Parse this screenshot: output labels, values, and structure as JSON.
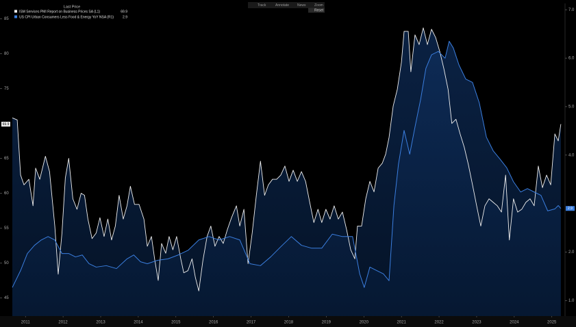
{
  "toolbar": [
    "Track",
    "Annotate",
    "News",
    "Zoom"
  ],
  "reset": "Reset",
  "chart_data": {
    "type": "area",
    "legend_header": "Last Price",
    "xlim": [
      2010.65,
      2025.26
    ],
    "xticks": [
      2011,
      2012,
      2013,
      2014,
      2015,
      2016,
      2017,
      2018,
      2019,
      2020,
      2021,
      2022,
      2023,
      2024,
      2025
    ],
    "ylim": [
      42.4,
      87.2
    ],
    "yticks": [
      45,
      50,
      55,
      60,
      65,
      75,
      80,
      85
    ],
    "y2lim": [
      0.68,
      7.13
    ],
    "y2ticks": [
      {
        "value": 1,
        "label": "1.0"
      },
      {
        "value": 2,
        "label": "2.0"
      },
      {
        "value": 4,
        "label": "4.0"
      },
      {
        "value": 5,
        "label": "5.0"
      },
      {
        "value": 6,
        "label": "6.0"
      },
      {
        "value": 7,
        "label": "7.0"
      }
    ],
    "grid": false,
    "series": [
      {
        "name": "ISM Services PMI Report on Business Prices SA  (L1)",
        "color": "#f0f0f0",
        "fill": "#0a2246",
        "x": [
          2010.65,
          2010.78,
          2010.87,
          2010.96,
          2011.09,
          2011.2,
          2011.27,
          2011.38,
          2011.53,
          2011.64,
          2011.78,
          2011.87,
          2011.97,
          2012.06,
          2012.15,
          2012.26,
          2012.37,
          2012.48,
          2012.57,
          2012.66,
          2012.77,
          2012.88,
          2012.98,
          2013.09,
          2013.19,
          2013.29,
          2013.39,
          2013.49,
          2013.6,
          2013.7,
          2013.79,
          2013.9,
          2014.02,
          2014.15,
          2014.24,
          2014.35,
          2014.44,
          2014.53,
          2014.62,
          2014.73,
          2014.82,
          2014.92,
          2015.02,
          2015.13,
          2015.21,
          2015.32,
          2015.43,
          2015.52,
          2015.61,
          2015.72,
          2015.83,
          2015.93,
          2016.04,
          2016.15,
          2016.26,
          2016.37,
          2016.48,
          2016.61,
          2016.7,
          2016.81,
          2016.92,
          2017.03,
          2017.14,
          2017.25,
          2017.36,
          2017.46,
          2017.57,
          2017.68,
          2017.79,
          2017.9,
          2018.01,
          2018.12,
          2018.23,
          2018.34,
          2018.45,
          2018.56,
          2018.67,
          2018.78,
          2018.88,
          2018.99,
          2019.1,
          2019.21,
          2019.32,
          2019.43,
          2019.54,
          2019.65,
          2019.76,
          2019.83,
          2019.94,
          2020.05,
          2020.16,
          2020.27,
          2020.38,
          2020.49,
          2020.58,
          2020.67,
          2020.78,
          2020.89,
          2021.0,
          2021.07,
          2021.18,
          2021.25,
          2021.36,
          2021.47,
          2021.58,
          2021.69,
          2021.8,
          2021.91,
          2022.02,
          2022.13,
          2022.24,
          2022.34,
          2022.45,
          2022.56,
          2022.67,
          2022.78,
          2022.89,
          2023.0,
          2023.11,
          2023.22,
          2023.33,
          2023.44,
          2023.55,
          2023.66,
          2023.77,
          2023.87,
          2023.98,
          2024.09,
          2024.2,
          2024.31,
          2024.42,
          2024.53,
          2024.64,
          2024.75,
          2024.86,
          2024.97,
          2025.08,
          2025.17,
          2025.24
        ],
        "values": [
          70.8,
          70.5,
          62.6,
          61.2,
          62,
          58.2,
          63.6,
          62,
          65.3,
          63.1,
          55.3,
          48.4,
          54.3,
          62.2,
          65,
          59.2,
          57.7,
          60,
          59.7,
          56.3,
          53.5,
          54.3,
          56.5,
          53.8,
          56.3,
          53.3,
          55.3,
          59.7,
          56.3,
          58.2,
          61,
          58.4,
          58.4,
          56.3,
          52.4,
          53.8,
          50.4,
          47.5,
          52.8,
          51.4,
          53.8,
          51.9,
          53.8,
          50.6,
          48.6,
          48.9,
          50.6,
          47.9,
          46,
          50.4,
          53.8,
          55.3,
          52.4,
          53.8,
          52.8,
          54.8,
          56.5,
          58.2,
          55.3,
          57.7,
          49.9,
          54.3,
          59.7,
          64.6,
          59.7,
          61.2,
          62,
          62,
          62.6,
          63.9,
          61.7,
          63.3,
          61.7,
          63.1,
          61.7,
          58.7,
          55.8,
          57.7,
          55.8,
          57.7,
          56.3,
          58.2,
          56.3,
          57.3,
          54.8,
          51.9,
          50.6,
          55.3,
          55.3,
          59.2,
          61.7,
          60.2,
          63.6,
          64.3,
          65.6,
          68,
          72.5,
          74.9,
          78.8,
          83.2,
          83.2,
          77.4,
          82.7,
          81.3,
          83.7,
          81.3,
          83.5,
          82.3,
          80.3,
          77.8,
          74.9,
          70,
          70.6,
          68.5,
          66.6,
          64.1,
          61.2,
          58.2,
          55.3,
          58.2,
          59.2,
          58.7,
          58.2,
          57.3,
          62.6,
          53.3,
          59.2,
          57.3,
          57.7,
          58.7,
          59.2,
          58.2,
          63.9,
          60.8,
          62.6,
          61.2,
          68.5,
          67.5,
          69.9
        ]
      },
      {
        "name": "US CPI Urban Consumers Less Food & Energy YoY NSA  (R1)",
        "color": "#3b7fe0",
        "fill": "#0a2246",
        "axis": "y2",
        "x": [
          2010.65,
          2010.87,
          2011.05,
          2011.24,
          2011.42,
          2011.6,
          2011.78,
          2011.97,
          2012.15,
          2012.33,
          2012.51,
          2012.69,
          2012.88,
          2013.15,
          2013.42,
          2013.7,
          2013.88,
          2014.06,
          2014.24,
          2014.51,
          2014.79,
          2015.06,
          2015.33,
          2015.61,
          2015.88,
          2016.15,
          2016.43,
          2016.7,
          2016.97,
          2017.25,
          2017.52,
          2017.79,
          2018.07,
          2018.34,
          2018.61,
          2018.88,
          2019.16,
          2019.43,
          2019.7,
          2019.89,
          2020.01,
          2020.16,
          2020.34,
          2020.52,
          2020.67,
          2020.8,
          2020.92,
          2021.07,
          2021.22,
          2021.36,
          2021.51,
          2021.65,
          2021.8,
          2021.98,
          2022.16,
          2022.27,
          2022.38,
          2022.53,
          2022.71,
          2022.89,
          2023.07,
          2023.26,
          2023.44,
          2023.62,
          2023.8,
          2023.98,
          2024.17,
          2024.35,
          2024.53,
          2024.71,
          2024.89,
          2025.08,
          2025.17,
          2025.24
        ],
        "values": [
          1.27,
          1.62,
          1.97,
          2.14,
          2.25,
          2.32,
          2.25,
          1.97,
          1.97,
          1.9,
          1.94,
          1.76,
          1.69,
          1.72,
          1.66,
          1.86,
          1.94,
          1.8,
          1.76,
          1.83,
          1.86,
          1.94,
          2.04,
          2.25,
          2.32,
          2.25,
          2.32,
          2.25,
          1.76,
          1.72,
          1.9,
          2.11,
          2.32,
          2.14,
          2.08,
          2.08,
          2.37,
          2.32,
          2.32,
          1.55,
          1.27,
          1.69,
          1.62,
          1.55,
          1.41,
          2.96,
          3.81,
          4.51,
          4.02,
          4.58,
          5.15,
          5.79,
          6.07,
          6.14,
          6.0,
          6.35,
          6.21,
          5.86,
          5.57,
          5.5,
          5.08,
          4.37,
          4.09,
          3.92,
          3.74,
          3.45,
          3.24,
          3.31,
          3.24,
          3.17,
          2.85,
          2.89,
          2.96,
          2.9
        ]
      }
    ]
  }
}
